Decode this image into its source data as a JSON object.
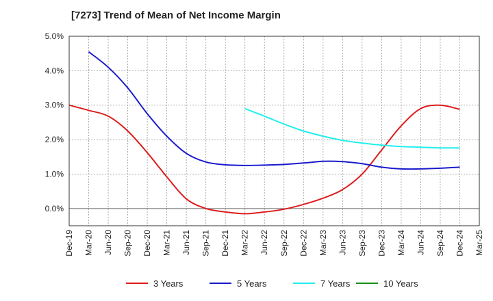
{
  "chart_data": {
    "type": "line",
    "title": "[7273]  Trend of Mean of Net Income Margin",
    "xlabel": "",
    "ylabel": "",
    "x_ticks": [
      "Dec-19",
      "Mar-20",
      "Jun-20",
      "Sep-20",
      "Dec-20",
      "Mar-21",
      "Jun-21",
      "Sep-21",
      "Dec-21",
      "Mar-22",
      "Jun-22",
      "Sep-22",
      "Dec-22",
      "Mar-23",
      "Jun-23",
      "Sep-23",
      "Dec-23",
      "Mar-24",
      "Jun-24",
      "Sep-24",
      "Dec-24",
      "Mar-25"
    ],
    "y_ticks": [
      "5.0%",
      "4.0%",
      "3.0%",
      "2.0%",
      "1.0%",
      "0.0%"
    ],
    "ylim": [
      -0.5,
      5.0
    ],
    "grid": true,
    "legend_position": "bottom",
    "series": [
      {
        "name": "3 Years",
        "color": "#dd1c1c",
        "x": [
          "Dec-19",
          "Mar-20",
          "Jun-20",
          "Sep-20",
          "Dec-20",
          "Mar-21",
          "Jun-21",
          "Sep-21",
          "Dec-21",
          "Mar-22",
          "Jun-22",
          "Sep-22",
          "Dec-22",
          "Mar-23",
          "Jun-23",
          "Sep-23",
          "Dec-23",
          "Mar-24",
          "Jun-24",
          "Sep-24",
          "Dec-24"
        ],
        "values": [
          3.0,
          2.85,
          2.68,
          2.25,
          1.62,
          0.92,
          0.28,
          0.0,
          -0.1,
          -0.15,
          -0.1,
          -0.02,
          0.12,
          0.3,
          0.55,
          1.0,
          1.7,
          2.4,
          2.9,
          3.0,
          2.88
        ]
      },
      {
        "name": "5 Years",
        "color": "#1a1acc",
        "x": [
          "Mar-20",
          "Jun-20",
          "Sep-20",
          "Dec-20",
          "Mar-21",
          "Jun-21",
          "Sep-21",
          "Dec-21",
          "Mar-22",
          "Jun-22",
          "Sep-22",
          "Dec-22",
          "Mar-23",
          "Jun-23",
          "Sep-23",
          "Dec-23",
          "Mar-24",
          "Jun-24",
          "Sep-24",
          "Dec-24"
        ],
        "values": [
          4.55,
          4.1,
          3.5,
          2.75,
          2.1,
          1.6,
          1.35,
          1.27,
          1.25,
          1.26,
          1.28,
          1.32,
          1.37,
          1.36,
          1.3,
          1.2,
          1.15,
          1.15,
          1.17,
          1.2
        ]
      },
      {
        "name": "7 Years",
        "color": "#22eeee",
        "x": [
          "Mar-22",
          "Jun-22",
          "Sep-22",
          "Dec-22",
          "Mar-23",
          "Jun-23",
          "Sep-23",
          "Dec-23",
          "Mar-24",
          "Jun-24",
          "Sep-24",
          "Dec-24"
        ],
        "values": [
          2.9,
          2.68,
          2.45,
          2.25,
          2.1,
          1.98,
          1.9,
          1.84,
          1.8,
          1.78,
          1.76,
          1.76
        ]
      },
      {
        "name": "10 Years",
        "color": "#1b8f1b",
        "x": [],
        "values": []
      }
    ]
  }
}
